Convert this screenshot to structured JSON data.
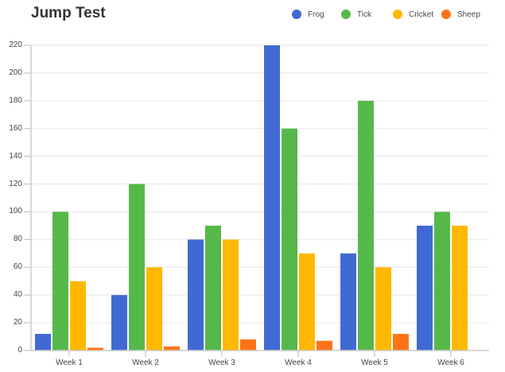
{
  "chart_data": {
    "type": "bar",
    "title": "Jump Test",
    "xlabel": "",
    "ylabel": "",
    "ylim": [
      0,
      220
    ],
    "yticks": [
      0,
      20,
      40,
      60,
      80,
      100,
      120,
      140,
      160,
      180,
      200,
      220
    ],
    "grid": true,
    "legend_position": "top-right",
    "categories": [
      "Week 1",
      "Week 2",
      "Week 3",
      "Week 4",
      "Week 5",
      "Week 6"
    ],
    "series": [
      {
        "name": "Frog",
        "color": "#4169d4",
        "values": [
          12,
          40,
          80,
          220,
          70,
          90
        ]
      },
      {
        "name": "Tick",
        "color": "#56b84a",
        "values": [
          100,
          120,
          90,
          160,
          180,
          100
        ]
      },
      {
        "name": "Cricket",
        "color": "#ffb800",
        "values": [
          50,
          60,
          80,
          70,
          60,
          90
        ]
      },
      {
        "name": "Sheep",
        "color": "#ff7316",
        "values": [
          2,
          3,
          8,
          7,
          12,
          0
        ]
      }
    ]
  }
}
